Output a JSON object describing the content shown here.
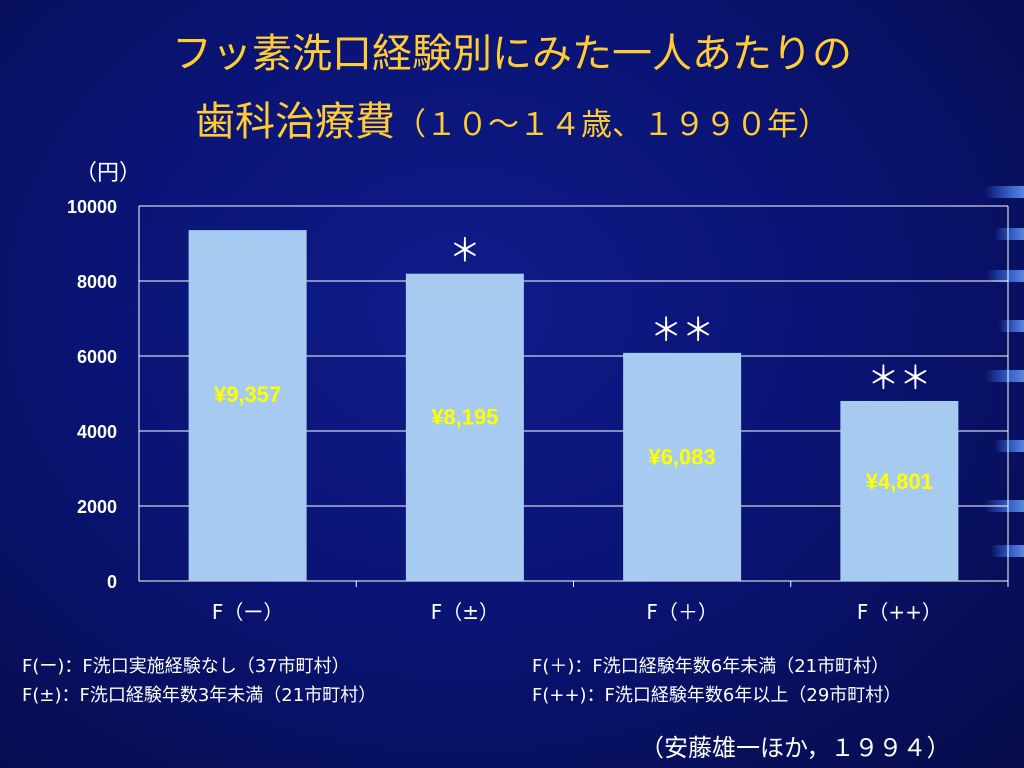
{
  "slide": {
    "title_line1": "フッ素洗口経験別にみた一人あたりの",
    "title_line2_main": "歯科治療費",
    "title_line2_sub": "（１０～１４歳、１９９０年）",
    "notes": [
      "F(ー)：F洗口実施経験なし（37市町村）",
      "F(±)：F洗口経験年数3年未満（21市町村）",
      "F(＋)：F洗口経験年数6年未満（21市町村）",
      "F(++)：F洗口経験年数6年以上（29市町村）"
    ],
    "citation": "（安藤雄一ほか，１９９４）"
  },
  "colors": {
    "title": "#ffcc33",
    "bar": "#a6caf0",
    "bar_label": "#ffff00",
    "axis_text": "#ffffff",
    "grid": "#ffffff"
  },
  "chart_data": {
    "type": "bar",
    "ylabel": "（円）",
    "ylim": [
      0,
      10000
    ],
    "yticks": [
      0,
      2000,
      4000,
      6000,
      8000,
      10000
    ],
    "categories": [
      "F（ー）",
      "F（±）",
      "F（＋）",
      "F（++）"
    ],
    "values": [
      9357,
      8195,
      6083,
      4801
    ],
    "data_labels": [
      "¥9,357",
      "¥8,195",
      "¥6,083",
      "¥4,801"
    ],
    "annotations": [
      "",
      "＊",
      "＊＊",
      "＊＊"
    ],
    "grid": true
  }
}
